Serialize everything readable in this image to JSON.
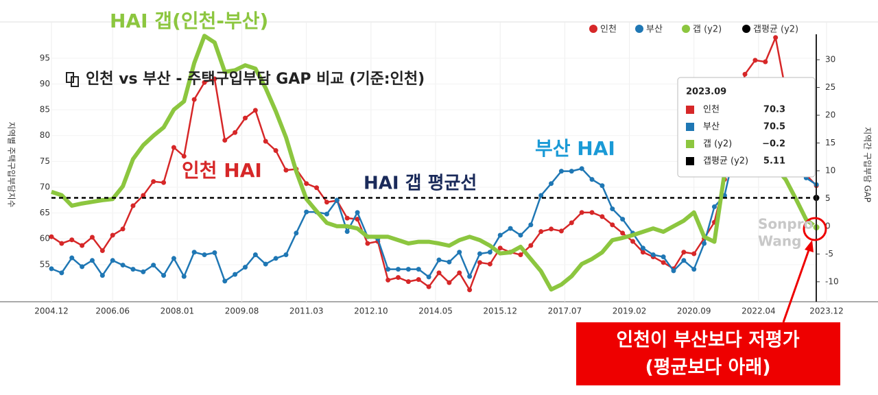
{
  "chart_data": {
    "type": "line",
    "title": "인천 vs 부산 - 주택구입부담 GAP 비교 (기준:인천)",
    "y_label": "지역별 주택구입부담지수",
    "y2_label": "지역간 구입부담 GAP",
    "x": [
      "2004.12",
      "2005.03",
      "2005.06",
      "2005.09",
      "2005.12",
      "2006.03",
      "2006.06",
      "2006.09",
      "2006.12",
      "2007.03",
      "2007.06",
      "2007.09",
      "2007.12",
      "2008.03",
      "2008.06",
      "2008.09",
      "2008.12",
      "2009.03",
      "2009.06",
      "2009.09",
      "2009.12",
      "2010.03",
      "2010.06",
      "2010.09",
      "2010.12",
      "2011.03",
      "2011.06",
      "2011.09",
      "2011.12",
      "2012.03",
      "2012.06",
      "2012.09",
      "2012.12",
      "2013.03",
      "2013.06",
      "2013.09",
      "2013.12",
      "2014.03",
      "2014.06",
      "2014.09",
      "2014.12",
      "2015.03",
      "2015.06",
      "2015.09",
      "2015.12",
      "2016.03",
      "2016.06",
      "2016.09",
      "2016.12",
      "2017.03",
      "2017.06",
      "2017.09",
      "2017.12",
      "2018.03",
      "2018.06",
      "2018.09",
      "2018.12",
      "2019.03",
      "2019.06",
      "2019.09",
      "2019.12",
      "2020.03",
      "2020.06",
      "2020.09",
      "2020.12",
      "2021.03",
      "2021.06",
      "2021.09",
      "2021.12",
      "2022.03",
      "2022.06",
      "2022.09",
      "2022.12",
      "2023.03",
      "2023.06",
      "2023.09"
    ],
    "series": [
      {
        "name": "인천",
        "color": "#d62728",
        "values": [
          60.4,
          59.1,
          59.8,
          58.7,
          60.3,
          57.7,
          60.7,
          61.9,
          66.4,
          68.4,
          71.1,
          70.9,
          77.7,
          76.0,
          87.0,
          90.3,
          91.0,
          79.1,
          80.6,
          83.4,
          84.9,
          78.9,
          77.1,
          73.3,
          73.5,
          70.7,
          69.9,
          67.1,
          67.4,
          64.0,
          63.8,
          59.1,
          59.5,
          52.0,
          52.5,
          51.7,
          52.1,
          50.7,
          53.4,
          51.5,
          53.4,
          50.1,
          55.4,
          55.1,
          58.2,
          57.4,
          56.9,
          58.7,
          61.4,
          61.9,
          61.5,
          63.1,
          65.1,
          65.1,
          64.3,
          62.7,
          61.1,
          59.5,
          57.4,
          56.5,
          55.4,
          54.2,
          57.4,
          57.1,
          60.1,
          63.2,
          71.5,
          82.4,
          91.9,
          94.6,
          94.3,
          99.0,
          88.6,
          82.4,
          72.4,
          70.3
        ]
      },
      {
        "name": "부산",
        "color": "#1f77b4",
        "values": [
          54.2,
          53.4,
          56.3,
          54.6,
          55.8,
          52.9,
          55.8,
          54.9,
          54.1,
          53.6,
          54.9,
          52.9,
          56.2,
          52.7,
          57.4,
          56.9,
          57.3,
          51.8,
          53.1,
          54.5,
          56.9,
          55.1,
          56.2,
          56.9,
          61.1,
          65.2,
          65.2,
          64.8,
          67.5,
          61.4,
          65.1,
          60.4,
          60.0,
          54.1,
          54.1,
          54.1,
          54.1,
          52.6,
          55.9,
          55.5,
          57.4,
          52.7,
          57.1,
          57.4,
          60.7,
          62.0,
          60.7,
          62.7,
          68.4,
          70.7,
          73.1,
          73.1,
          73.6,
          71.5,
          70.3,
          65.8,
          63.8,
          61.1,
          58.2,
          56.9,
          56.5,
          53.8,
          55.8,
          54.1,
          59.1,
          66.2,
          68.4,
          77.1,
          82.1,
          83.7,
          84.6,
          88.4,
          83.7,
          77.1,
          71.8,
          70.5
        ]
      },
      {
        "name": "갭 (y2)",
        "color": "#8cc63f",
        "axis": "y2",
        "values": [
          6.2,
          5.6,
          3.7,
          4.1,
          4.4,
          4.7,
          4.9,
          7.2,
          12.1,
          14.6,
          16.3,
          17.8,
          21.0,
          22.5,
          29.4,
          34.3,
          33.1,
          27.8,
          28.1,
          29.0,
          28.4,
          24.9,
          20.7,
          16.0,
          9.9,
          4.9,
          2.7,
          0.6,
          0,
          0,
          -0.4,
          -1.9,
          -1.9,
          -1.9,
          -2.5,
          -3.1,
          -2.8,
          -2.8,
          -3.1,
          -3.5,
          -2.5,
          -1.9,
          -2.5,
          -3.5,
          -4.9,
          -4.7,
          -3.7,
          -5.9,
          -8.1,
          -11.4,
          -10.5,
          -9.0,
          -6.8,
          -5.9,
          -4.7,
          -2.5,
          -2.1,
          -1.6,
          -1.0,
          -0.4,
          -1.0,
          0,
          1.0,
          2.5,
          -1.9,
          -2.8,
          9.6,
          11.1,
          10.4,
          11.1,
          10.5,
          10.6,
          8.4,
          4.9,
          1.2,
          -0.2
        ]
      },
      {
        "name": "갭평균 (y2)",
        "color": "#000000",
        "axis": "y2",
        "value": 5.11
      }
    ],
    "ylim": [
      47.8,
      100.3
    ],
    "yticks": [
      55,
      60,
      65,
      70,
      75,
      80,
      85,
      90,
      95
    ],
    "y2lim": [
      -13.6,
      35.2
    ],
    "y2ticks": [
      -10,
      -5,
      0,
      5,
      10,
      15,
      20,
      25,
      30
    ],
    "xticks": [
      "2004.12",
      "2006.06",
      "2008.01",
      "2009.08",
      "2011.03",
      "2012.10",
      "2014.05",
      "2015.12",
      "2017.07",
      "2019.02",
      "2020.09",
      "2022.04",
      "2023.12"
    ],
    "grid": true,
    "tooltip": {
      "title": "2023.09",
      "values": [
        "70.3",
        "70.5",
        "−0.2",
        "5.11"
      ]
    },
    "annotations": [
      {
        "text": "HAI 갭(인천-부산)",
        "color": "#8cc63f"
      },
      {
        "text": "인천 HAI",
        "color": "#d62728"
      },
      {
        "text": "부산 HAI",
        "color": "#1a9ad6"
      },
      {
        "text": "HAI 갭 평균선",
        "color": "#1a2a5a"
      }
    ],
    "callout": [
      "인천이 부산보다 저평가",
      "(평균보다 아래)"
    ],
    "watermark": [
      "Sonpro",
      "Wang"
    ]
  }
}
